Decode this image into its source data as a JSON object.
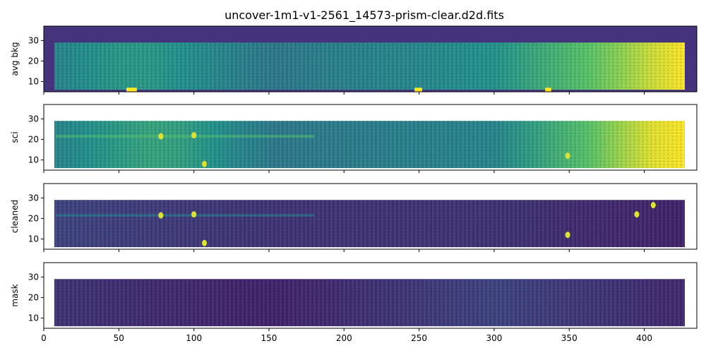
{
  "chart_data": {
    "type": "heatmap",
    "title": "uncover-1m1-v1-2561_14573-prism-clear.d2d.fits",
    "colormap": "viridis",
    "shared_x": true,
    "xlim": [
      0,
      435
    ],
    "ylim": [
      5,
      37
    ],
    "x_ticks": [
      0,
      50,
      100,
      150,
      200,
      250,
      300,
      350,
      400
    ],
    "y_ticks": [
      10,
      20,
      30
    ],
    "panels": [
      {
        "ylabel": "avg bkg",
        "background": "#46337e",
        "features": [
          {
            "kind": "brightness_trend",
            "x": [
              8,
              60,
              150,
              300,
              370,
              410,
              427
            ],
            "level": [
              0.45,
              0.55,
              0.4,
              0.5,
              0.75,
              0.95,
              1.0
            ]
          },
          {
            "kind": "hot_patch",
            "x": [
              55,
              62
            ],
            "y": [
              5,
              7
            ]
          },
          {
            "kind": "hot_patch",
            "x": [
              247,
              252
            ],
            "y": [
              5,
              7
            ]
          },
          {
            "kind": "hot_patch",
            "x": [
              334,
              338
            ],
            "y": [
              5,
              7
            ]
          }
        ]
      },
      {
        "ylabel": "sci",
        "background": "#ffffff",
        "features": [
          {
            "kind": "brightness_trend",
            "x": [
              8,
              78,
              150,
              300,
              370,
              400,
              427
            ],
            "level": [
              0.45,
              0.6,
              0.4,
              0.45,
              0.75,
              0.95,
              1.0
            ]
          },
          {
            "kind": "trace",
            "y": 21.5,
            "x": [
              8,
              180
            ]
          },
          {
            "kind": "hot_spot",
            "x": 78,
            "y": 21.5
          },
          {
            "kind": "hot_spot",
            "x": 100,
            "y": 22
          },
          {
            "kind": "hot_spot",
            "x": 107,
            "y": 8
          },
          {
            "kind": "hot_spot",
            "x": 349,
            "y": 12
          }
        ]
      },
      {
        "ylabel": "cleaned",
        "background": "#ffffff",
        "features": [
          {
            "kind": "brightness_trend",
            "x": [
              8,
              150,
              300,
              427
            ],
            "level": [
              0.2,
              0.15,
              0.15,
              0.1
            ]
          },
          {
            "kind": "trace",
            "y": 21.5,
            "x": [
              8,
              180
            ]
          },
          {
            "kind": "hot_spot",
            "x": 78,
            "y": 21.5
          },
          {
            "kind": "hot_spot",
            "x": 100,
            "y": 22
          },
          {
            "kind": "hot_spot",
            "x": 107,
            "y": 8
          },
          {
            "kind": "hot_spot",
            "x": 349,
            "y": 12
          },
          {
            "kind": "hot_spot",
            "x": 395,
            "y": 22
          },
          {
            "kind": "hot_spot",
            "x": 406,
            "y": 26.5
          }
        ]
      },
      {
        "ylabel": "mask",
        "background": "#ffffff",
        "features": [
          {
            "kind": "brightness_trend",
            "x": [
              8,
              150,
              300,
              427
            ],
            "level": [
              0.15,
              0.1,
              0.2,
              0.12
            ]
          }
        ]
      }
    ]
  }
}
